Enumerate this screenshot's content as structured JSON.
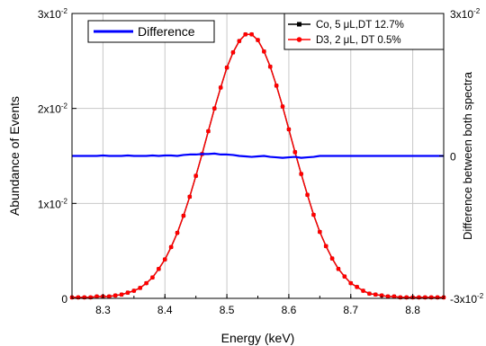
{
  "chart_data": {
    "type": "line",
    "xlabel": "Energy (keV)",
    "ylabel": "Abundance of Events",
    "y2label": "Difference between both spectra",
    "xlim": [
      8.25,
      8.85
    ],
    "ylim": [
      0,
      0.03
    ],
    "y2lim": [
      -0.03,
      0.03
    ],
    "x_ticks": [
      "8.3",
      "8.4",
      "8.5",
      "8.6",
      "8.7",
      "8.8"
    ],
    "x_tick_values": [
      8.3,
      8.4,
      8.5,
      8.6,
      8.7,
      8.8
    ],
    "y_ticks": [
      {
        "value": 0,
        "mantissa": "0",
        "exponent": ""
      },
      {
        "value": 0.01,
        "mantissa": "1x10",
        "exponent": "-2"
      },
      {
        "value": 0.02,
        "mantissa": "2x10",
        "exponent": "-2"
      },
      {
        "value": 0.03,
        "mantissa": "3x10",
        "exponent": "-2"
      }
    ],
    "y2_ticks": [
      {
        "value": -0.03,
        "mantissa": "-3x10",
        "exponent": "-2"
      },
      {
        "value": 0,
        "mantissa": "0",
        "exponent": ""
      },
      {
        "value": 0.03,
        "mantissa": "3x10",
        "exponent": "-2"
      }
    ],
    "grid": true,
    "x": [
      8.25,
      8.26,
      8.27,
      8.28,
      8.29,
      8.3,
      8.31,
      8.32,
      8.33,
      8.34,
      8.35,
      8.36,
      8.37,
      8.38,
      8.39,
      8.4,
      8.41,
      8.42,
      8.43,
      8.44,
      8.45,
      8.46,
      8.47,
      8.48,
      8.49,
      8.5,
      8.51,
      8.52,
      8.53,
      8.54,
      8.55,
      8.56,
      8.57,
      8.58,
      8.59,
      8.6,
      8.61,
      8.62,
      8.63,
      8.64,
      8.65,
      8.66,
      8.67,
      8.68,
      8.69,
      8.7,
      8.71,
      8.72,
      8.73,
      8.74,
      8.75,
      8.76,
      8.77,
      8.78,
      8.79,
      8.8,
      8.81,
      8.82,
      8.83,
      8.84,
      8.85
    ],
    "series": [
      {
        "name": "Co, 5 μL,DT 12.7%",
        "color": "#000000",
        "marker": "square",
        "axis": "left",
        "values": [
          0.0001,
          0.0001,
          0.0001,
          0.0001,
          0.0002,
          0.0002,
          0.0002,
          0.0003,
          0.0004,
          0.0006,
          0.0008,
          0.0011,
          0.0016,
          0.0022,
          0.0031,
          0.0041,
          0.0054,
          0.0069,
          0.0087,
          0.0107,
          0.0129,
          0.0152,
          0.0176,
          0.02,
          0.0222,
          0.0243,
          0.0259,
          0.0271,
          0.0278,
          0.0278,
          0.0272,
          0.026,
          0.0244,
          0.0224,
          0.0202,
          0.0178,
          0.0154,
          0.0131,
          0.0109,
          0.0088,
          0.007,
          0.0055,
          0.0042,
          0.0031,
          0.0023,
          0.0016,
          0.0012,
          0.0008,
          0.0005,
          0.0004,
          0.0003,
          0.0002,
          0.0002,
          0.0001,
          0.0001,
          0.0001,
          0.0001,
          0.0001,
          0.0001,
          0.0001,
          0.0001
        ]
      },
      {
        "name": "D3, 2 μL, DT 0.5%",
        "color": "#ff0000",
        "marker": "circle",
        "axis": "left",
        "values": [
          0.0001,
          0.0001,
          0.0001,
          0.0001,
          0.0002,
          0.0002,
          0.0002,
          0.0003,
          0.0004,
          0.0006,
          0.0008,
          0.0011,
          0.0016,
          0.0022,
          0.0031,
          0.0041,
          0.0054,
          0.0069,
          0.0087,
          0.0107,
          0.0129,
          0.0152,
          0.0176,
          0.02,
          0.0222,
          0.0243,
          0.0259,
          0.0271,
          0.0278,
          0.0278,
          0.0272,
          0.026,
          0.0244,
          0.0224,
          0.0202,
          0.0178,
          0.0154,
          0.0131,
          0.0109,
          0.0088,
          0.007,
          0.0055,
          0.0042,
          0.0031,
          0.0023,
          0.0016,
          0.0012,
          0.0008,
          0.0005,
          0.0004,
          0.0003,
          0.0002,
          0.0002,
          0.0001,
          0.0001,
          0.0001,
          0.0001,
          0.0001,
          0.0001,
          0.0001,
          0.0001
        ]
      },
      {
        "name": "Difference",
        "color": "#0000ff",
        "marker": "none",
        "axis": "right",
        "values": [
          0,
          0,
          0,
          0,
          0,
          0.0001,
          0,
          0,
          0,
          0.0001,
          0,
          0,
          0,
          0.0001,
          0,
          0.0001,
          0.0001,
          0,
          0.0002,
          0.0003,
          0.0003,
          0.0004,
          0.0004,
          0.0005,
          0.0003,
          0.0003,
          0.0002,
          0,
          -0.0001,
          -0.0002,
          -0.0001,
          0,
          -0.0002,
          -0.0003,
          -0.0004,
          -0.0003,
          -0.0002,
          -0.0004,
          -0.0003,
          -0.0002,
          0,
          0,
          0,
          0,
          0,
          0,
          0,
          0,
          0,
          0,
          0,
          0,
          0,
          0,
          0,
          0,
          0,
          0,
          0,
          0,
          0
        ]
      }
    ]
  }
}
